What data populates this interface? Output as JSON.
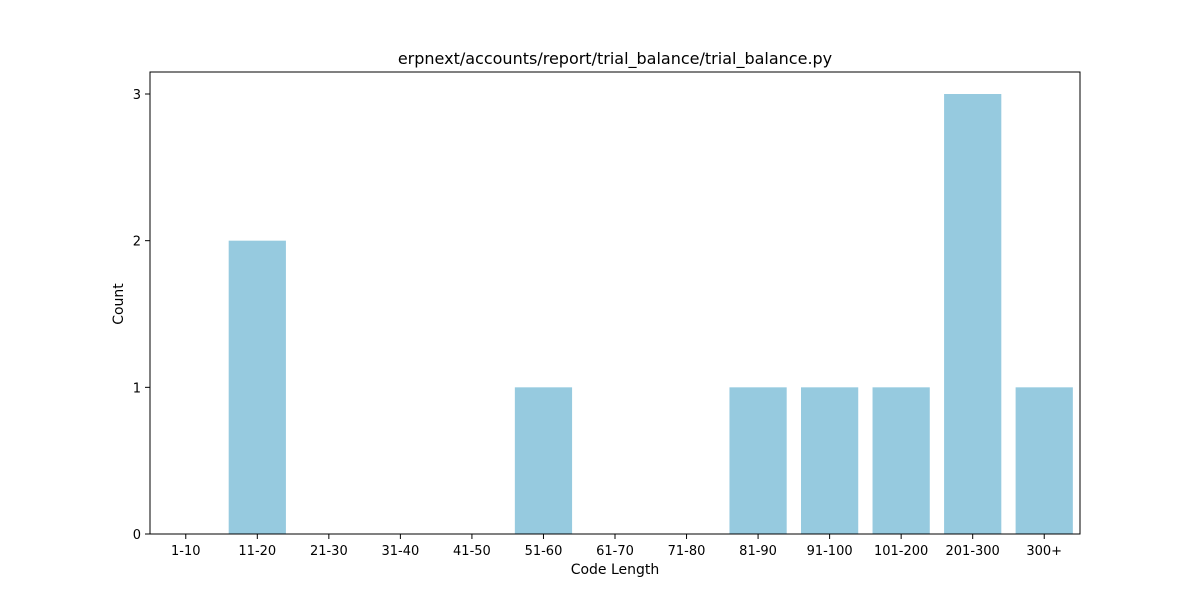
{
  "chart_data": {
    "type": "bar",
    "title": "erpnext/accounts/report/trial_balance/trial_balance.py",
    "xlabel": "Code Length",
    "ylabel": "Count",
    "categories": [
      "1-10",
      "11-20",
      "21-30",
      "31-40",
      "41-50",
      "51-60",
      "61-70",
      "71-80",
      "81-90",
      "91-100",
      "101-200",
      "201-300",
      "300+"
    ],
    "values": [
      0,
      2,
      0,
      0,
      0,
      1,
      0,
      0,
      1,
      1,
      1,
      3,
      1
    ],
    "yticks": [
      0,
      1,
      2,
      3
    ],
    "ylim": [
      0,
      3.15
    ],
    "bar_color": "#96cadf",
    "grid": false,
    "legend": "none"
  }
}
